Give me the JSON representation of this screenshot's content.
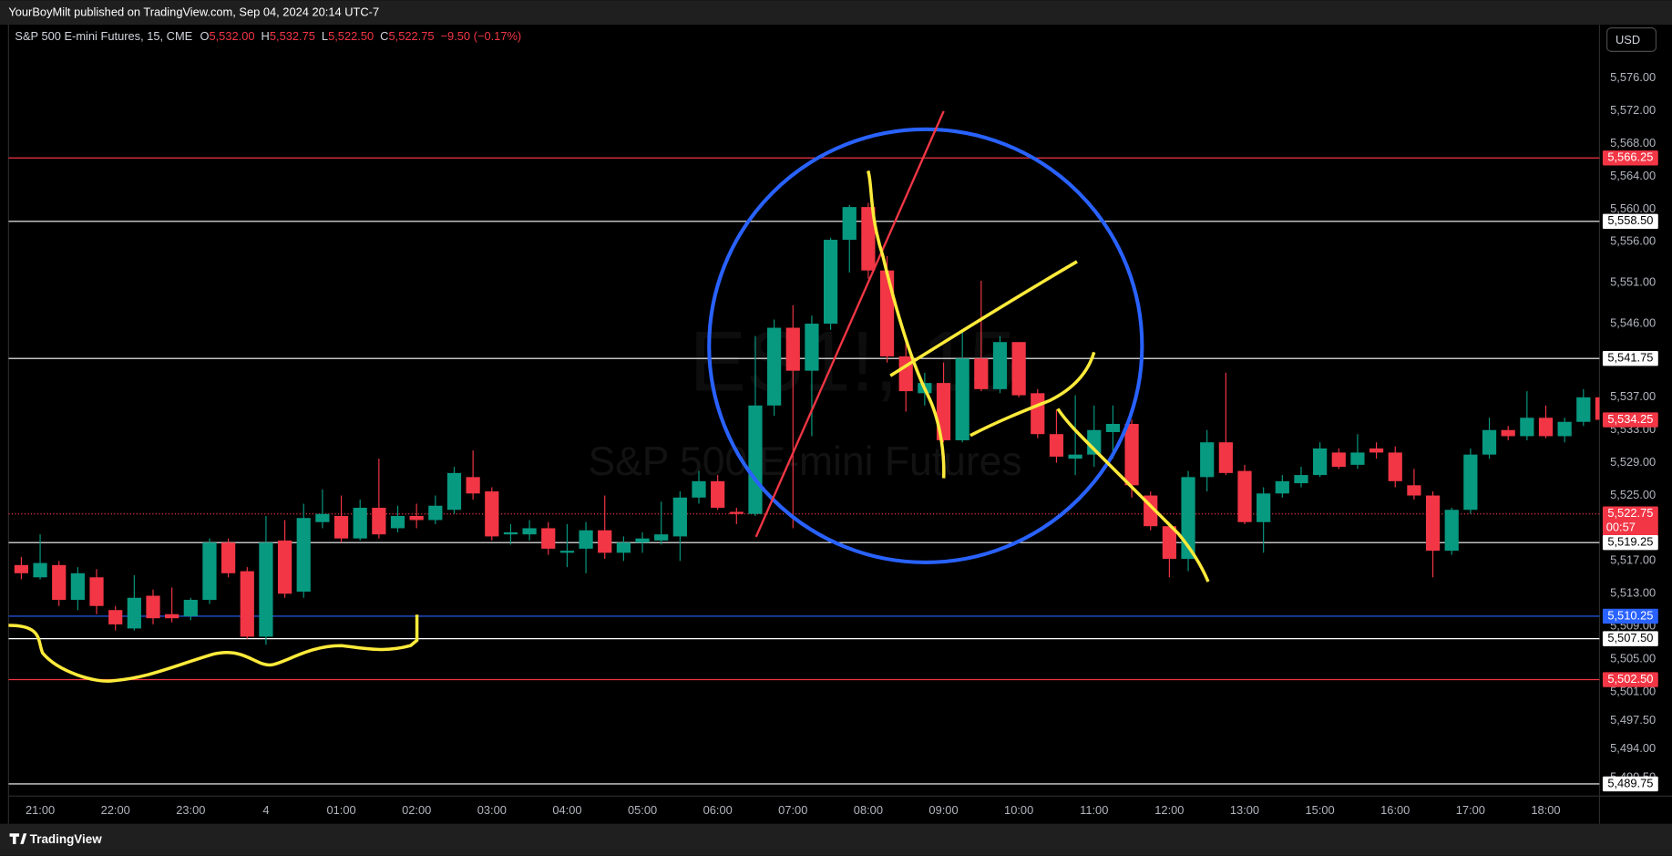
{
  "header": {
    "publisher": "YourBoyMilt published on TradingView.com, Sep 04, 2024 20:14 UTC-7",
    "symbol": "S&P 500 E-mini Futures, 15, CME",
    "legend": [
      {
        "label": "O",
        "value": "5,532.00"
      },
      {
        "label": "H",
        "value": "5,532.75"
      },
      {
        "label": "L",
        "value": "5,522.50"
      },
      {
        "label": "C",
        "value": "5,522.75"
      }
    ],
    "change": "−9.50 (−0.17%)",
    "legend_color": "#f23645",
    "currency": "USD"
  },
  "watermark": [
    "ES1!, 15",
    "S&P 500 E-mini Futures"
  ],
  "footer": {
    "brand": "TradingView"
  },
  "chart_data": {
    "type": "candlestick",
    "up_color": "#089981",
    "down_color": "#f23645",
    "grid": false,
    "categories": [
      null,
      "21:00",
      null,
      null,
      null,
      "22:00",
      null,
      null,
      null,
      "23:00",
      null,
      null,
      null,
      "4",
      null,
      null,
      null,
      "01:00",
      null,
      null,
      null,
      "02:00",
      null,
      null,
      null,
      "03:00",
      null,
      null,
      null,
      "04:00",
      null,
      null,
      null,
      "05:00",
      null,
      null,
      null,
      "06:00",
      null,
      null,
      null,
      "07:00",
      null,
      null,
      null,
      "08:00",
      null,
      null,
      null,
      "09:00",
      null,
      null,
      null,
      "10:00",
      null,
      null,
      null,
      "11:00",
      null,
      null,
      null,
      "12:00",
      null,
      null,
      null,
      "13:00",
      null,
      null,
      null,
      "15:00",
      null,
      null,
      null,
      "16:00",
      null,
      null,
      null,
      "17:00",
      null,
      null,
      null,
      "18:00",
      null,
      null,
      null
    ],
    "open": [
      5516.5,
      5515,
      5516.5,
      5512.25,
      5515,
      5511,
      5508.75,
      5512.75,
      5510.5,
      5510.25,
      5512.25,
      5519.25,
      5515.75,
      5507.75,
      5519.5,
      5513.25,
      5521.75,
      5522.5,
      5519.75,
      5523.5,
      5521,
      5522.5,
      5522,
      5523.25,
      5527.25,
      5525.5,
      5520.25,
      5520.25,
      5521,
      5518,
      5518.5,
      5520.75,
      5518,
      5519.25,
      5519.5,
      5520,
      5524.75,
      5526.75,
      5523,
      5522.75,
      5536,
      5545.5,
      5540.25,
      5546,
      5556.25,
      5560.25,
      5552.5,
      5542,
      5537.5,
      5538.75,
      5531.75,
      5541.75,
      5538,
      5543.75,
      5537.5,
      5532.5,
      5529.5,
      5530,
      5532.75,
      5533.75,
      5525,
      5521.25,
      5517.25,
      5527.25,
      5531.5,
      5528,
      5521.75,
      5525.25,
      5526.5,
      5527.5,
      5530.25,
      5528.75,
      5530.75,
      5530.25,
      5526.25,
      5525,
      5518.25,
      5523.25,
      5530,
      5533,
      5532.25,
      5534.5,
      5532.25,
      5534,
      5537
    ],
    "high": [
      5517.5,
      5520.25,
      5517,
      5516.25,
      5516,
      5511.5,
      5515.25,
      5513.5,
      5513.75,
      5512.5,
      5519.75,
      5519.75,
      5516.25,
      5522.5,
      5522,
      5524,
      5525.75,
      5525,
      5524.5,
      5529.5,
      5523.75,
      5524,
      5525,
      5528.5,
      5530.5,
      5526,
      5521.5,
      5522,
      5521.75,
      5521.5,
      5521.75,
      5525,
      5520,
      5520.5,
      5524.25,
      5525.5,
      5528,
      5527.5,
      5523.5,
      5544.5,
      5546.5,
      5548.25,
      5547,
      5556.5,
      5560.5,
      5560.75,
      5554.25,
      5543.75,
      5540,
      5541.25,
      5545,
      5551.25,
      5544.5,
      5543.75,
      5538,
      5535.5,
      5537.25,
      5536,
      5536,
      5534.25,
      5525.5,
      5521.5,
      5528,
      5533,
      5540,
      5528.75,
      5526,
      5527.5,
      5528.5,
      5531.5,
      5530.75,
      5532.5,
      5531.5,
      5531,
      5528.25,
      5525.5,
      5523.5,
      5530.75,
      5534.5,
      5533.5,
      5537.75,
      5536,
      5534.5,
      5538,
      5537.5
    ],
    "low": [
      5514.75,
      5514.75,
      5511.5,
      5511,
      5510.5,
      5508.5,
      5508.5,
      5509.25,
      5509.5,
      5509.75,
      5511.75,
      5515,
      5507.5,
      5506.75,
      5512.5,
      5512.5,
      5521,
      5519.25,
      5519.5,
      5519.75,
      5520.5,
      5521,
      5521.5,
      5522.75,
      5524.5,
      5519.5,
      5519,
      5519.5,
      5517.75,
      5516.25,
      5515.5,
      5517.25,
      5517,
      5518,
      5519,
      5517,
      5524,
      5523.25,
      5521.5,
      5522.5,
      5534.75,
      5521,
      5532.25,
      5545.25,
      5552.25,
      5551.5,
      5541.25,
      5535.25,
      5536,
      5531.5,
      5531.5,
      5537.75,
      5537.5,
      5537,
      5532,
      5529,
      5527.5,
      5528.5,
      5529.5,
      5524.75,
      5520.75,
      5515,
      5515.75,
      5525.5,
      5527.5,
      5521.5,
      5518,
      5524.75,
      5526,
      5527.25,
      5528.25,
      5528.25,
      5529.5,
      5526,
      5524.5,
      5515,
      5517.75,
      5522.75,
      5529.5,
      5531.75,
      5531.75,
      5532,
      5531.5,
      5533.5,
      5533.75
    ],
    "close": [
      5515.5,
      5516.75,
      5512.25,
      5515.5,
      5511.5,
      5509.25,
      5512.5,
      5510,
      5510,
      5512.25,
      5519.25,
      5515.5,
      5507.75,
      5519.25,
      5513,
      5522.25,
      5522.75,
      5519.75,
      5523.5,
      5520.25,
      5522.5,
      5522,
      5523.75,
      5527.75,
      5525.25,
      5520,
      5520.5,
      5521,
      5518.5,
      5518.25,
      5520.75,
      5518,
      5519.25,
      5519.75,
      5520.25,
      5524.75,
      5526.75,
      5523.5,
      5522.75,
      5536,
      5545.5,
      5540.25,
      5546,
      5556.25,
      5560.25,
      5552.5,
      5542,
      5537.75,
      5538.75,
      5531.75,
      5541.75,
      5538,
      5543.75,
      5537.25,
      5532.5,
      5529.75,
      5530,
      5533,
      5533.75,
      5526.25,
      5521.25,
      5517.25,
      5527.25,
      5531.5,
      5527.75,
      5521.75,
      5525.25,
      5526.75,
      5527.5,
      5530.75,
      5528.5,
      5530.25,
      5530.25,
      5526.75,
      5525,
      5518.25,
      5523.25,
      5530,
      5533,
      5532.25,
      5534.5,
      5532.25,
      5534,
      5537,
      5534.25
    ],
    "ylim": [
      5488.4,
      5582.4
    ],
    "yticks": [
      {
        "value": 5576,
        "label": "5,576.00"
      },
      {
        "value": 5572,
        "label": "5,572.00"
      },
      {
        "value": 5568,
        "label": "5,568.00"
      },
      {
        "value": 5564,
        "label": "5,564.00"
      },
      {
        "value": 5560,
        "label": "5,560.00"
      },
      {
        "value": 5556,
        "label": "5,556.00"
      },
      {
        "value": 5551,
        "label": "5,551.00"
      },
      {
        "value": 5546,
        "label": "5,546.00"
      },
      {
        "value": 5537,
        "label": "5,537.00"
      },
      {
        "value": 5533,
        "label": "5,533.00"
      },
      {
        "value": 5529,
        "label": "5,529.00"
      },
      {
        "value": 5525,
        "label": "5,525.00"
      },
      {
        "value": 5517,
        "label": "5,517.00"
      },
      {
        "value": 5513,
        "label": "5,513.00"
      },
      {
        "value": 5509,
        "label": "5,509.00"
      },
      {
        "value": 5505,
        "label": "5,505.00"
      },
      {
        "value": 5501,
        "label": "5,501.00"
      },
      {
        "value": 5497.5,
        "label": "5,497.50"
      },
      {
        "value": 5494,
        "label": "5,494.00"
      },
      {
        "value": 5490.5,
        "label": "5,490.50"
      }
    ],
    "levels": [
      {
        "value": 5566.25,
        "label": "5,566.25",
        "color": "#f23645",
        "style": "solid"
      },
      {
        "value": 5558.5,
        "label": "5,558.50",
        "color": "#ffffff",
        "style": "solid"
      },
      {
        "value": 5541.75,
        "label": "5,541.75",
        "color": "#ffffff",
        "style": "solid"
      },
      {
        "value": 5534.25,
        "label": "5,534.25",
        "color": "#f23645",
        "style": "none"
      },
      {
        "value": 5522.75,
        "label": "5,522.75",
        "countdown": "00:57",
        "color": "#f23645",
        "style": "dotted"
      },
      {
        "value": 5519.25,
        "label": "5,519.25",
        "color": "#ffffff",
        "style": "solid"
      },
      {
        "value": 5510.25,
        "label": "5,510.25",
        "color": "#2962ff",
        "style": "solid"
      },
      {
        "value": 5507.5,
        "label": "5,507.50",
        "color": "#ffffff",
        "style": "solid"
      },
      {
        "value": 5502.5,
        "label": "5,502.50",
        "color": "#f23645",
        "style": "solid"
      },
      {
        "value": 5489.75,
        "label": "5,489.75",
        "color": "#ffffff",
        "style": "solid"
      }
    ]
  }
}
